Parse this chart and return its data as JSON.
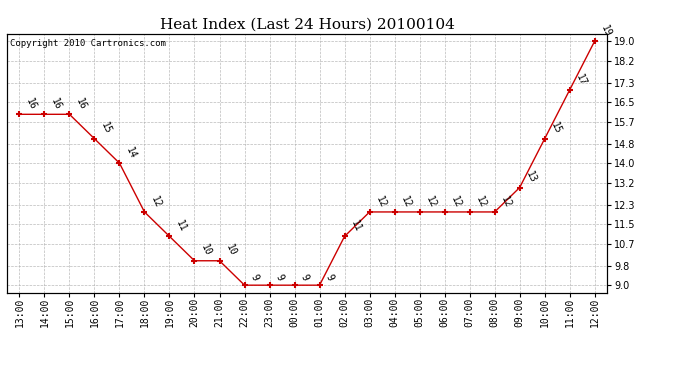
{
  "title": "Heat Index (Last 24 Hours) 20100104",
  "copyright": "Copyright 2010 Cartronics.com",
  "x_labels": [
    "13:00",
    "14:00",
    "15:00",
    "16:00",
    "17:00",
    "18:00",
    "19:00",
    "20:00",
    "21:00",
    "22:00",
    "23:00",
    "00:00",
    "01:00",
    "02:00",
    "03:00",
    "04:00",
    "05:00",
    "06:00",
    "07:00",
    "08:00",
    "09:00",
    "10:00",
    "11:00",
    "12:00"
  ],
  "y_values": [
    16,
    16,
    16,
    15,
    14,
    12,
    11,
    10,
    10,
    9,
    9,
    9,
    9,
    11,
    12,
    12,
    12,
    12,
    12,
    12,
    13,
    15,
    17,
    19
  ],
  "y_ticks": [
    9.0,
    9.8,
    10.7,
    11.5,
    12.3,
    13.2,
    14.0,
    14.8,
    15.7,
    16.5,
    17.3,
    18.2,
    19.0
  ],
  "ylim": [
    8.7,
    19.3
  ],
  "line_color": "#cc0000",
  "marker": "+",
  "marker_size": 5,
  "marker_linewidth": 1.5,
  "background_color": "#ffffff",
  "grid_color": "#aaaaaa",
  "title_fontsize": 11,
  "tick_fontsize": 7,
  "annotation_fontsize": 7,
  "annotation_rotation": -65,
  "copyright_fontsize": 6.5
}
